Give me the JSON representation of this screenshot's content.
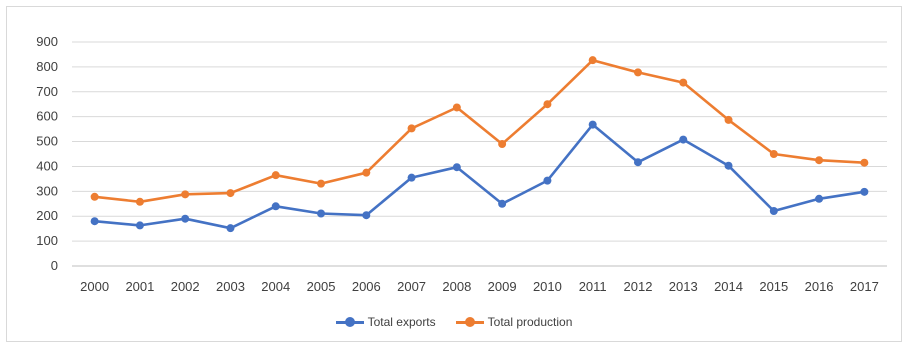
{
  "chart_data": {
    "type": "line",
    "x": [
      "2000",
      "2001",
      "2002",
      "2003",
      "2004",
      "2005",
      "2006",
      "2007",
      "2008",
      "2009",
      "2010",
      "2011",
      "2012",
      "2013",
      "2014",
      "2015",
      "2016",
      "2017"
    ],
    "y_ticks": [
      "0",
      "100",
      "200",
      "300",
      "400",
      "500",
      "600",
      "700",
      "800",
      "900"
    ],
    "ylim": [
      0,
      900
    ],
    "grid": true,
    "legend_position": "bottom",
    "series": [
      {
        "name": "Total exports",
        "color": "#4472c4",
        "values": [
          180,
          163,
          190,
          152,
          240,
          211,
          204,
          355,
          397,
          250,
          343,
          568,
          417,
          508,
          403,
          221,
          270,
          298
        ]
      },
      {
        "name": "Total production",
        "color": "#ed7d31",
        "values": [
          278,
          258,
          288,
          293,
          365,
          331,
          375,
          553,
          637,
          490,
          650,
          827,
          778,
          737,
          587,
          450,
          425,
          415
        ]
      }
    ]
  }
}
